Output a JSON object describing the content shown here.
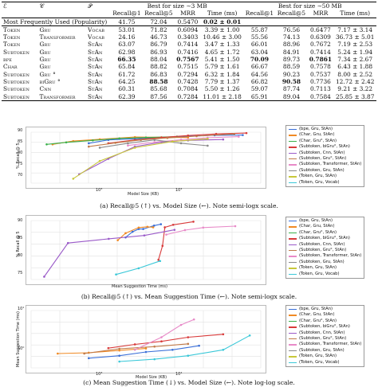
{
  "table": {
    "header1": {
      "col_a": "ℰ",
      "col_b": "𝒞",
      "col_c": "𝒫",
      "group1": "Best for size ∼3 MB",
      "group2": "Best for size ∼50 MB"
    },
    "header2": [
      "Recall@1",
      "Recall@5",
      "MRR",
      "Time (ms)",
      "Recall@1",
      "Recall@5",
      "MRR",
      "Time (ms)"
    ],
    "rows": [
      {
        "e": "Most Frequently Used (Popularity)",
        "c": "",
        "p": "",
        "v": [
          "41.75",
          "72.04",
          "0.5470",
          "0.02 ± 0.01",
          "",
          "",
          "",
          ""
        ]
      },
      {
        "e": "Token",
        "c": "Gru",
        "p": "Vocab",
        "v": [
          "53.01",
          "71.82",
          "0.6094",
          "3.39 ± 1.00",
          "55.87",
          "76.56",
          "0.6477",
          "7.17 ± 3.14"
        ]
      },
      {
        "e": "Token",
        "c": "Transformer",
        "p": "Vocab",
        "v": [
          "24.16",
          "46.73",
          "0.3403",
          "10.46 ± 3.00",
          "55.56",
          "74.13",
          "0.6309",
          "36.73 ± 5.01"
        ]
      },
      {
        "e": "Token",
        "c": "Gru",
        "p": "StAn",
        "v": [
          "63.07",
          "86.79",
          "0.7414",
          "3.47 ± 1.33",
          "66.01",
          "88.96",
          "0.7672",
          "7.19 ± 2.53"
        ]
      },
      {
        "e": "Subtoken",
        "c": "Gru",
        "p": "StAn",
        "v": [
          "62.98",
          "86.93",
          "0.7416",
          "4.65 ± 1.72",
          "63.04",
          "84.91",
          "0.7414",
          "5.24 ± 1.94"
        ]
      },
      {
        "e": "bpe",
        "c": "Gru",
        "p": "StAn",
        "v": [
          "66.35",
          "88.04",
          "0.7567",
          "5.41 ± 1.50",
          "70.09",
          "89.73",
          "0.7861",
          "7.34 ± 2.67"
        ]
      },
      {
        "e": "Char",
        "c": "Gru",
        "p": "StAn",
        "v": [
          "65.84",
          "88.82",
          "0.7515",
          "5.79 ± 1.61",
          "66.67",
          "88.59",
          "0.7578",
          "6.43 ± 1.88"
        ]
      },
      {
        "e": "Subtoken",
        "c": "Gru °",
        "p": "StAn",
        "v": [
          "61.72",
          "86.83",
          "0.7294",
          "6.32 ± 1.84",
          "64.56",
          "90.23",
          "0.7537",
          "8.00 ± 2.52"
        ]
      },
      {
        "e": "Subtoken",
        "c": "biGru °",
        "p": "StAn",
        "v": [
          "64.25",
          "88.58",
          "0.7428",
          "7.79 ± 1.37",
          "66.82",
          "90.58",
          "0.7736",
          "12.72 ± 2.42"
        ]
      },
      {
        "e": "Subtoken",
        "c": "Cnn",
        "p": "StAn",
        "v": [
          "60.31",
          "85.68",
          "0.7084",
          "5.50 ± 1.26",
          "59.07",
          "87.74",
          "0.7113",
          "9.21 ± 3.22"
        ]
      },
      {
        "e": "Subtoken",
        "c": "Transformer",
        "p": "StAn",
        "v": [
          "62.39",
          "87.56",
          "0.7284",
          "11.01 ± 2.18",
          "65.91",
          "89.04",
          "0.7584",
          "25.85 ± 3.87"
        ]
      }
    ]
  },
  "legend": [
    {
      "label": "(bpe, Gru, StAn)",
      "color": "#3a6fd8"
    },
    {
      "label": "(Char, Gru, StAn)",
      "color": "#f08a24"
    },
    {
      "label": "(Char, Gru°, StAn)",
      "color": "#3ab04a"
    },
    {
      "label": "(Subtoken, biGru°, StAn)",
      "color": "#d83a3a"
    },
    {
      "label": "(Subtoken, Cnn, StAn)",
      "color": "#9a5ac8"
    },
    {
      "label": "(Subtoken, Gru°, StAn)",
      "color": "#c07a48"
    },
    {
      "label": "(Subtoken, Transformer, StAn)",
      "color": "#e88ac8"
    },
    {
      "label": "(Subtoken, Gru, StAn)",
      "color": "#8a8a8a"
    },
    {
      "label": "(Token, Gru, StAn)",
      "color": "#c8c83a"
    },
    {
      "label": "(Token, Gru, Vocab)",
      "color": "#3ac8d8"
    }
  ],
  "panels": {
    "a": {
      "caption": "(a) Recall@5 (↑) vs. Model Size (←). Note semi-logx scale.",
      "xlabel": "Model Size (KB)",
      "ylabel": "% Recall @ 5",
      "yticks": [
        "90",
        "85",
        "80",
        "75",
        "70"
      ],
      "xticks": [
        "10³",
        "10⁴"
      ]
    },
    "b": {
      "caption": "(b) Recall@5 (↑) vs. Mean Suggestion Time (←). Note semi-logx scale.",
      "xlabel": "Mean Suggestion Time (ms)",
      "ylabel": "% Recall @ 5",
      "yticks": [
        "90",
        "85",
        "80",
        "75"
      ],
      "xticks": []
    },
    "c": {
      "caption": "(c) Mean Suggestion Time (↓) vs. Model Size (←). Note log-log scale.",
      "xlabel": "Model Size (KB)",
      "ylabel": "Mean Suggestion Time (ms)",
      "yticks": [
        "10¹",
        "10⁰"
      ],
      "xticks": [
        "10³",
        "10⁴"
      ]
    }
  },
  "chart_data": [
    {
      "type": "line",
      "xlabel": "Model Size (KB)",
      "ylabel": "% Recall @ 5",
      "xscale": "log",
      "series": [
        {
          "name": "(bpe, Gru, StAn)",
          "x": [
            900,
            1500,
            3000,
            6000,
            12000,
            24000,
            50000
          ],
          "y": [
            86.0,
            87.5,
            88.0,
            88.6,
            89.2,
            89.6,
            89.7
          ]
        },
        {
          "name": "(Char, Gru, StAn)",
          "x": [
            350,
            600,
            1200,
            3000,
            6000,
            12000
          ],
          "y": [
            85.5,
            87.0,
            87.8,
            88.8,
            88.7,
            88.6
          ]
        },
        {
          "name": "(Char, Gru°, StAn)",
          "x": [
            300,
            500,
            1000,
            2000,
            4000,
            9000
          ],
          "y": [
            85.5,
            86.4,
            87.3,
            88.2,
            88.6,
            89.0
          ]
        },
        {
          "name": "(Subtoken, biGru°, StAn)",
          "x": [
            1500,
            3000,
            6000,
            12000,
            25000,
            55000
          ],
          "y": [
            86.0,
            87.5,
            88.6,
            89.5,
            90.2,
            90.6
          ]
        },
        {
          "name": "(Subtoken, Cnn, StAn)",
          "x": [
            700,
            1500,
            3000,
            6000,
            12000,
            30000
          ],
          "y": [
            72.0,
            79.0,
            84.5,
            86.5,
            87.3,
            87.7
          ]
        },
        {
          "name": "(Subtoken, Gru°, StAn)",
          "x": [
            900,
            1800,
            3500,
            7000,
            15000,
            40000
          ],
          "y": [
            84.5,
            86.2,
            87.5,
            88.4,
            89.2,
            90.2
          ]
        },
        {
          "name": "(Subtoken, Transformer, StAn)",
          "x": [
            2500,
            5000,
            10000,
            20000,
            45000
          ],
          "y": [
            85.0,
            86.5,
            87.6,
            88.5,
            89.0
          ]
        },
        {
          "name": "(Subtoken, Gru, StAn)",
          "x": [
            1200,
            2500,
            5000,
            10000,
            20000
          ],
          "y": [
            84.0,
            86.0,
            87.5,
            86.0,
            84.9
          ]
        },
        {
          "name": "(Token, Gru, StAn)",
          "x": [
            600,
            1200,
            3000,
            8000,
            20000
          ],
          "y": [
            70.0,
            78.0,
            84.0,
            86.8,
            88.0
          ]
        }
      ]
    },
    {
      "type": "line",
      "xlabel": "Mean Suggestion Time (ms)",
      "ylabel": "% Recall @ 5",
      "xscale": "log",
      "series": [
        {
          "name": "(bpe, Gru, StAn)",
          "x": [
            4.0,
            4.5,
            5.0,
            5.4,
            6.5,
            7.3
          ],
          "y": [
            85.0,
            87.0,
            88.0,
            88.0,
            89.2,
            89.7
          ]
        },
        {
          "name": "(Char, Gru, StAn)",
          "x": [
            3.5,
            4.0,
            5.0,
            5.8,
            6.4
          ],
          "y": [
            84.0,
            86.5,
            88.5,
            88.8,
            88.6
          ]
        },
        {
          "name": "(Subtoken, biGru°, StAn)",
          "x": [
            7.0,
            7.5,
            7.8,
            9.0,
            12.7
          ],
          "y": [
            77.0,
            82.0,
            88.6,
            89.5,
            90.6
          ]
        },
        {
          "name": "(Subtoken, Cnn, StAn)",
          "x": [
            1.0,
            1.5,
            3.0,
            5.5,
            9.2
          ],
          "y": [
            71.0,
            83.0,
            84.5,
            85.7,
            87.7
          ]
        },
        {
          "name": "(Subtoken, Transformer, StAn)",
          "x": [
            8.0,
            11.0,
            15.0,
            25.9
          ],
          "y": [
            86.0,
            87.6,
            88.5,
            89.0
          ]
        },
        {
          "name": "(Token, Gru, Vocab)",
          "x": [
            3.4,
            5.0,
            7.2
          ],
          "y": [
            71.8,
            74.0,
            76.6
          ]
        }
      ]
    },
    {
      "type": "line",
      "xlabel": "Model Size (KB)",
      "ylabel": "Mean Suggestion Time (ms)",
      "xscale": "log",
      "yscale": "log",
      "series": [
        {
          "name": "(bpe, Gru, StAn)",
          "x": [
            900,
            2000,
            4000,
            8000,
            16000
          ],
          "y": [
            4.0,
            4.5,
            5.4,
            6.0,
            7.3
          ]
        },
        {
          "name": "(Char, Gru, StAn)",
          "x": [
            400,
            900,
            2000,
            4000
          ],
          "y": [
            5.0,
            5.2,
            5.8,
            6.4
          ]
        },
        {
          "name": "(Subtoken, biGru°, StAn)",
          "x": [
            1500,
            3000,
            6000,
            12000,
            30000
          ],
          "y": [
            6.5,
            7.8,
            9.0,
            11.0,
            12.7
          ]
        },
        {
          "name": "(Subtoken, Gru°, StAn)",
          "x": [
            800,
            2000,
            5000,
            12000
          ],
          "y": [
            5.0,
            6.3,
            7.0,
            8.0
          ]
        },
        {
          "name": "(Subtoken, Transformer, StAn)",
          "x": [
            3000,
            6000,
            10000,
            14000
          ],
          "y": [
            6.0,
            11.0,
            20.0,
            26.0
          ]
        },
        {
          "name": "(Token, Gru, Vocab)",
          "x": [
            2000,
            5000,
            12000,
            30000,
            60000
          ],
          "y": [
            3.4,
            3.8,
            4.5,
            6.0,
            12.0
          ]
        }
      ]
    }
  ]
}
